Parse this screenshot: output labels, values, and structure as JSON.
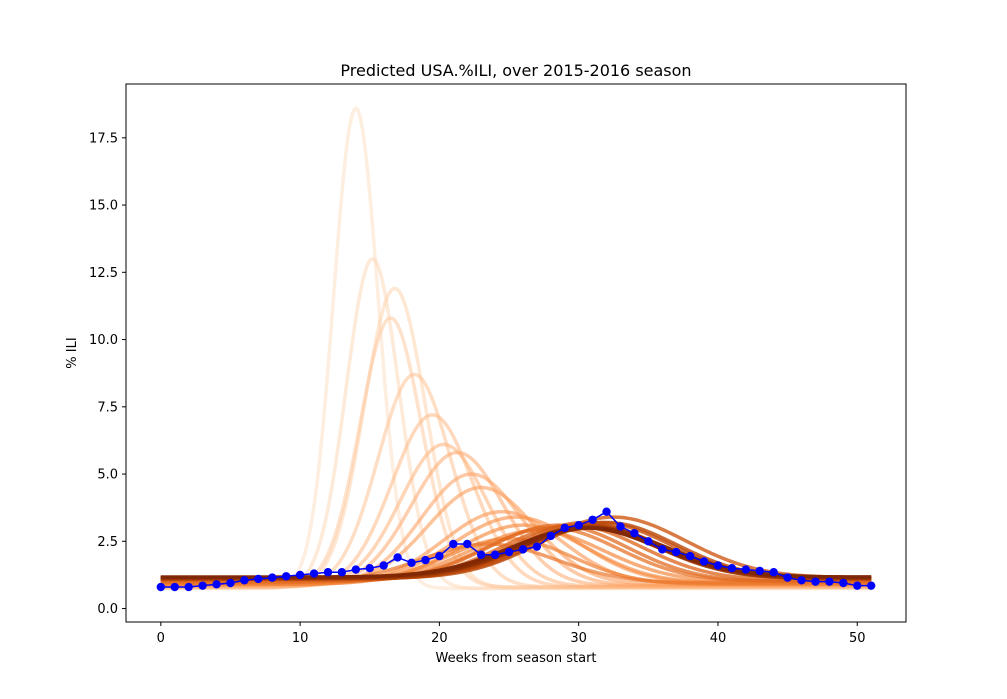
{
  "chart_data": {
    "type": "line",
    "title": "Predicted USA.%ILI, over 2015-2016 season",
    "xlabel": "Weeks from season start",
    "ylabel": "% ILI",
    "xlim": [
      -2.5,
      53.5
    ],
    "ylim": [
      -0.5,
      19.5
    ],
    "xticks": [
      0,
      10,
      20,
      30,
      40,
      50
    ],
    "yticks": [
      0.0,
      2.5,
      5.0,
      7.5,
      10.0,
      12.5,
      15.0,
      17.5
    ],
    "xtick_labels": [
      "0",
      "10",
      "20",
      "30",
      "40",
      "50"
    ],
    "ytick_labels": [
      "0.0",
      "2.5",
      "5.0",
      "7.5",
      "10.0",
      "12.5",
      "15.0",
      "17.5"
    ],
    "grid": false,
    "legend": "none",
    "prediction_curve_colors": [
      "#fdd9b8",
      "#fdbf8e",
      "#fda263",
      "#f58a3e",
      "#e46d22",
      "#c9520f",
      "#a33b06",
      "#7f2704"
    ],
    "observed_color": "#0000ff",
    "prediction_curves": [
      {
        "peak_week": 14.0,
        "peak": 18.6,
        "baseline": 0.75,
        "width": 1.6
      },
      {
        "peak_week": 15.2,
        "peak": 13.0,
        "baseline": 0.75,
        "width": 1.9
      },
      {
        "peak_week": 16.8,
        "peak": 11.9,
        "baseline": 0.78,
        "width": 2.2
      },
      {
        "peak_week": 16.5,
        "peak": 10.8,
        "baseline": 0.8,
        "width": 2.2
      },
      {
        "peak_week": 18.2,
        "peak": 8.7,
        "baseline": 0.8,
        "width": 2.6
      },
      {
        "peak_week": 19.5,
        "peak": 7.2,
        "baseline": 0.8,
        "width": 2.9
      },
      {
        "peak_week": 20.3,
        "peak": 6.1,
        "baseline": 0.82,
        "width": 3.1
      },
      {
        "peak_week": 21.3,
        "peak": 5.8,
        "baseline": 0.85,
        "width": 3.3
      },
      {
        "peak_week": 22.3,
        "peak": 5.0,
        "baseline": 0.85,
        "width": 3.6
      },
      {
        "peak_week": 23.0,
        "peak": 4.5,
        "baseline": 0.9,
        "width": 3.8
      },
      {
        "peak_week": 24.5,
        "peak": 3.6,
        "baseline": 0.9,
        "width": 4.2
      },
      {
        "peak_week": 25.5,
        "peak": 3.4,
        "baseline": 0.95,
        "width": 4.5
      },
      {
        "peak_week": 26.0,
        "peak": 3.1,
        "baseline": 0.95,
        "width": 4.6
      },
      {
        "peak_week": 27.0,
        "peak": 2.9,
        "baseline": 1.0,
        "width": 4.8
      },
      {
        "peak_week": 25.0,
        "peak": 2.6,
        "baseline": 0.9,
        "width": 4.5
      },
      {
        "peak_week": 23.5,
        "peak": 2.4,
        "baseline": 0.95,
        "width": 4.8
      },
      {
        "peak_week": 28.0,
        "peak": 3.0,
        "baseline": 1.0,
        "width": 4.9
      },
      {
        "peak_week": 28.5,
        "peak": 3.1,
        "baseline": 1.0,
        "width": 5.0
      },
      {
        "peak_week": 29.5,
        "peak": 3.1,
        "baseline": 1.05,
        "width": 5.0
      },
      {
        "peak_week": 30.5,
        "peak": 3.2,
        "baseline": 1.1,
        "width": 5.1
      },
      {
        "peak_week": 32.5,
        "peak": 3.4,
        "baseline": 1.15,
        "width": 5.2
      },
      {
        "peak_week": 31.5,
        "peak": 3.2,
        "baseline": 1.1,
        "width": 5.1
      },
      {
        "peak_week": 32.0,
        "peak": 3.2,
        "baseline": 1.12,
        "width": 5.0
      },
      {
        "peak_week": 31.0,
        "peak": 3.1,
        "baseline": 1.1,
        "width": 5.0
      },
      {
        "peak_week": 31.0,
        "peak": 3.05,
        "baseline": 1.12,
        "width": 5.1
      },
      {
        "peak_week": 30.5,
        "peak": 3.05,
        "baseline": 1.12,
        "width": 5.1
      },
      {
        "peak_week": 31.0,
        "peak": 3.0,
        "baseline": 1.15,
        "width": 5.2
      },
      {
        "peak_week": 30.5,
        "peak": 3.0,
        "baseline": 1.15,
        "width": 5.2
      },
      {
        "peak_week": 31.0,
        "peak": 3.0,
        "baseline": 1.17,
        "width": 5.3
      },
      {
        "peak_week": 30.5,
        "peak": 3.0,
        "baseline": 1.17,
        "width": 5.3
      }
    ],
    "observed": {
      "x": [
        0,
        1,
        2,
        3,
        4,
        5,
        6,
        7,
        8,
        9,
        10,
        11,
        12,
        13,
        14,
        15,
        16,
        17,
        18,
        19,
        20,
        21,
        22,
        23,
        24,
        25,
        26,
        27,
        28,
        29,
        30,
        31,
        32,
        33,
        34,
        35,
        36,
        37,
        38,
        39,
        40,
        41,
        42,
        43,
        44,
        45,
        46,
        47,
        48,
        49,
        50,
        51
      ],
      "y": [
        0.8,
        0.8,
        0.8,
        0.85,
        0.9,
        0.95,
        1.05,
        1.1,
        1.15,
        1.2,
        1.25,
        1.3,
        1.35,
        1.35,
        1.45,
        1.5,
        1.6,
        1.9,
        1.7,
        1.8,
        1.95,
        2.4,
        2.4,
        2.0,
        2.0,
        2.1,
        2.2,
        2.3,
        2.7,
        3.0,
        3.1,
        3.3,
        3.6,
        3.05,
        2.8,
        2.5,
        2.2,
        2.1,
        1.95,
        1.75,
        1.6,
        1.5,
        1.45,
        1.4,
        1.35,
        1.15,
        1.05,
        1.0,
        1.0,
        0.95,
        0.85,
        0.85
      ]
    }
  }
}
